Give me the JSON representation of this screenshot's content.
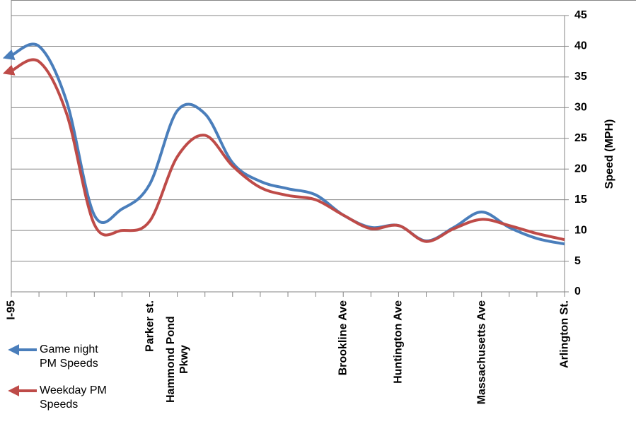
{
  "chart_data": {
    "type": "line",
    "y_label": "Speed (MPH)",
    "categories": [
      "I-95",
      null,
      null,
      null,
      null,
      "Parker st.",
      "Hammond Pond Pkwy",
      null,
      null,
      null,
      null,
      null,
      "Brookline Ave",
      null,
      "Huntington Ave",
      null,
      null,
      "Massachusetts Ave",
      null,
      null,
      "Arlington St."
    ],
    "series": [
      {
        "name": "Game night PM Speeds",
        "color": "#4a7ebb",
        "values": [
          38.5,
          40,
          31,
          12.5,
          13.5,
          17.5,
          29.5,
          29,
          21,
          18,
          16.8,
          15.8,
          12.5,
          10.5,
          10.8,
          8.3,
          10.5,
          13,
          10.5,
          8.7,
          7.8
        ]
      },
      {
        "name": "Weekday PM Speeds",
        "color": "#be4b48",
        "values": [
          36,
          37.5,
          29,
          11,
          10,
          11.5,
          22,
          25.5,
          20.5,
          17,
          15.7,
          15,
          12.5,
          10.3,
          10.8,
          8.2,
          10.3,
          11.8,
          10.8,
          9.5,
          8.5
        ]
      }
    ],
    "ylim": [
      0,
      45
    ],
    "yticks": [
      0,
      5,
      10,
      15,
      20,
      25,
      30,
      35,
      40,
      45
    ],
    "grid": true
  }
}
